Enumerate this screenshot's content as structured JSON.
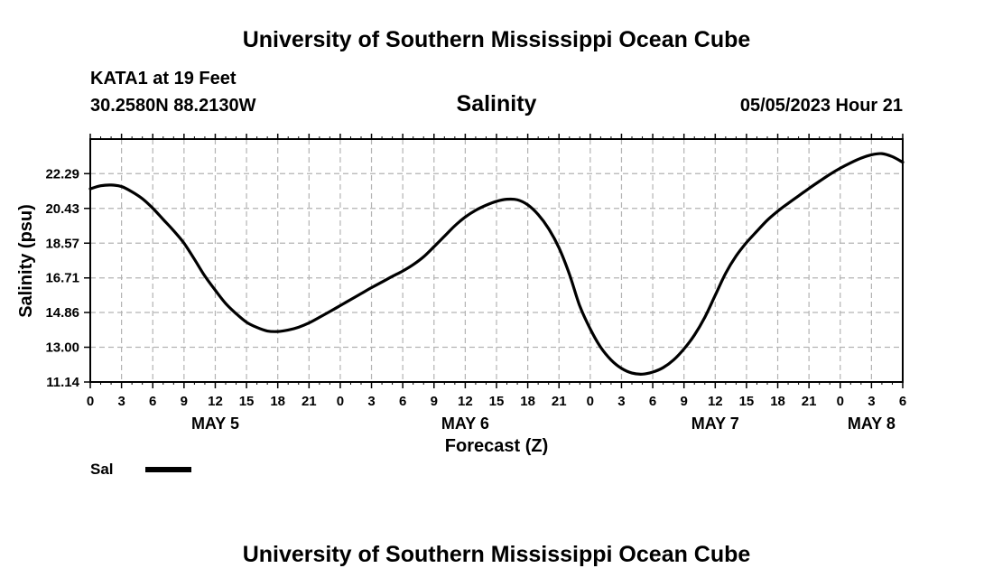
{
  "header": {
    "title": "University of Southern Mississippi Ocean Cube",
    "station": "KATA1 at 19 Feet",
    "coords": "30.2580N  88.2130W",
    "datetime": "05/05/2023 Hour 21"
  },
  "footer": {
    "title": "University of Southern Mississippi Ocean Cube"
  },
  "legend": {
    "label": "Sal"
  },
  "chart_data": {
    "type": "line",
    "title": "Salinity",
    "xlabel": "Forecast (Z)",
    "ylabel": "Salinity (psu)",
    "x_tick_labels": [
      "0",
      "3",
      "6",
      "9",
      "12",
      "15",
      "18",
      "21",
      "0",
      "3",
      "6",
      "9",
      "12",
      "15",
      "18",
      "21",
      "0",
      "3",
      "6",
      "9",
      "12",
      "15",
      "18",
      "21",
      "0",
      "3",
      "6"
    ],
    "date_labels": [
      {
        "label": "MAY 5",
        "x": 12
      },
      {
        "label": "MAY 6",
        "x": 36
      },
      {
        "label": "MAY 7",
        "x": 60
      },
      {
        "label": "MAY 8",
        "x": 75
      }
    ],
    "y_ticks": [
      11.14,
      13.0,
      14.86,
      16.71,
      18.57,
      20.43,
      22.29
    ],
    "y_tick_labels": [
      "11.14",
      "13.00",
      "14.86",
      "16.71",
      "18.57",
      "20.43",
      "22.29"
    ],
    "xlim": [
      0,
      78
    ],
    "ylim": [
      11.14,
      24.14
    ],
    "grid": true,
    "series": [
      {
        "name": "Sal",
        "color": "#000000",
        "x": [
          0,
          1,
          2,
          3,
          4,
          5,
          6,
          7,
          8,
          9,
          10,
          11,
          12,
          13,
          14,
          15,
          16,
          17,
          18,
          19,
          20,
          21,
          22,
          23,
          24,
          25,
          26,
          27,
          28,
          29,
          30,
          31,
          32,
          33,
          34,
          35,
          36,
          37,
          38,
          39,
          40,
          41,
          42,
          43,
          44,
          45,
          46,
          47,
          48,
          49,
          50,
          51,
          52,
          53,
          54,
          55,
          56,
          57,
          58,
          59,
          60,
          61,
          62,
          63,
          64,
          65,
          66,
          67,
          68,
          69,
          70,
          71,
          72,
          73,
          74,
          75,
          76,
          77,
          78
        ],
        "values": [
          21.48,
          21.64,
          21.68,
          21.6,
          21.32,
          20.95,
          20.44,
          19.84,
          19.24,
          18.57,
          17.71,
          16.81,
          16.05,
          15.34,
          14.8,
          14.34,
          14.06,
          13.87,
          13.84,
          13.92,
          14.07,
          14.3,
          14.6,
          14.91,
          15.23,
          15.55,
          15.87,
          16.19,
          16.49,
          16.79,
          17.08,
          17.42,
          17.84,
          18.38,
          18.94,
          19.5,
          19.97,
          20.33,
          20.6,
          20.81,
          20.92,
          20.89,
          20.62,
          20.1,
          19.35,
          18.32,
          16.91,
          15.2,
          13.98,
          13.0,
          12.32,
          11.87,
          11.62,
          11.56,
          11.67,
          11.91,
          12.32,
          12.91,
          13.65,
          14.6,
          15.78,
          16.96,
          17.88,
          18.6,
          19.21,
          19.8,
          20.28,
          20.7,
          21.1,
          21.5,
          21.88,
          22.25,
          22.58,
          22.87,
          23.12,
          23.3,
          23.36,
          23.2,
          22.9
        ]
      }
    ]
  }
}
